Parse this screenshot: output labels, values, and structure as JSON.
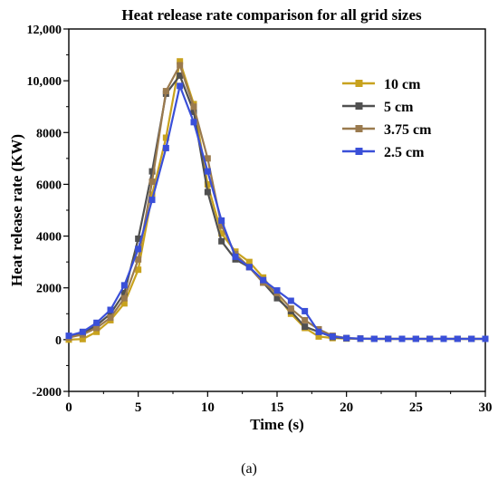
{
  "caption": "(a)",
  "chart_data": {
    "type": "line",
    "title": "Heat release rate comparison for all grid sizes",
    "xlabel": "Time (s)",
    "ylabel": "Heat release rate (KW)",
    "xlim": [
      0,
      30
    ],
    "ylim": [
      -2000,
      12000
    ],
    "xticks": [
      0,
      5,
      10,
      15,
      20,
      25,
      30
    ],
    "yticks": [
      -2000,
      0,
      2000,
      4000,
      6000,
      8000,
      10000,
      12000
    ],
    "ytick_labels": [
      "-2000",
      "0",
      "2000",
      "4000",
      "6000",
      "8000",
      "10,000",
      "12,000"
    ],
    "grid": false,
    "legend_position": "top-right",
    "series": [
      {
        "name": "10 cm",
        "color": "#C8A21E",
        "x": [
          0,
          1,
          2,
          3,
          4,
          5,
          6,
          7,
          8,
          9,
          10,
          11,
          12,
          13,
          14,
          15,
          16,
          17,
          18,
          19,
          20,
          21,
          22,
          23,
          24,
          25,
          26,
          27,
          28,
          29,
          30
        ],
        "y": [
          0,
          20,
          300,
          750,
          1400,
          2700,
          5600,
          7800,
          10750,
          9100,
          6000,
          4100,
          3400,
          3000,
          2400,
          1700,
          1000,
          450,
          120,
          60,
          40,
          30,
          30,
          30,
          30,
          30,
          30,
          30,
          30,
          30,
          30
        ]
      },
      {
        "name": "5 cm",
        "color": "#505050",
        "x": [
          0,
          1,
          2,
          3,
          4,
          5,
          6,
          7,
          8,
          9,
          10,
          11,
          12,
          13,
          14,
          15,
          16,
          17,
          18,
          19,
          20,
          21,
          22,
          23,
          24,
          25,
          26,
          27,
          28,
          29,
          30
        ],
        "y": [
          100,
          250,
          550,
          1000,
          1800,
          3900,
          6500,
          9500,
          10200,
          8800,
          5700,
          3800,
          3100,
          2800,
          2200,
          1600,
          1100,
          500,
          300,
          100,
          50,
          40,
          30,
          30,
          30,
          30,
          30,
          30,
          30,
          30,
          30
        ]
      },
      {
        "name": "3.75 cm",
        "color": "#9A7A4E",
        "x": [
          0,
          1,
          2,
          3,
          4,
          5,
          6,
          7,
          8,
          9,
          10,
          11,
          12,
          13,
          14,
          15,
          16,
          17,
          18,
          19,
          20,
          21,
          22,
          23,
          24,
          25,
          26,
          27,
          28,
          29,
          30
        ],
        "y": [
          80,
          200,
          450,
          850,
          1600,
          3100,
          6100,
          9600,
          10600,
          9000,
          7000,
          4400,
          3300,
          2800,
          2200,
          1800,
          1200,
          750,
          400,
          150,
          60,
          40,
          30,
          30,
          30,
          30,
          30,
          30,
          30,
          30,
          30
        ]
      },
      {
        "name": "2.5 cm",
        "color": "#3A4FD8",
        "x": [
          0,
          1,
          2,
          3,
          4,
          5,
          6,
          7,
          8,
          9,
          10,
          11,
          12,
          13,
          14,
          15,
          16,
          17,
          18,
          19,
          20,
          21,
          22,
          23,
          24,
          25,
          26,
          27,
          28,
          29,
          30
        ],
        "y": [
          150,
          300,
          650,
          1150,
          2100,
          3500,
          5400,
          7400,
          9800,
          8400,
          6500,
          4600,
          3200,
          2800,
          2300,
          1900,
          1500,
          1100,
          300,
          120,
          60,
          40,
          30,
          30,
          30,
          30,
          30,
          30,
          30,
          30,
          30
        ]
      }
    ]
  }
}
